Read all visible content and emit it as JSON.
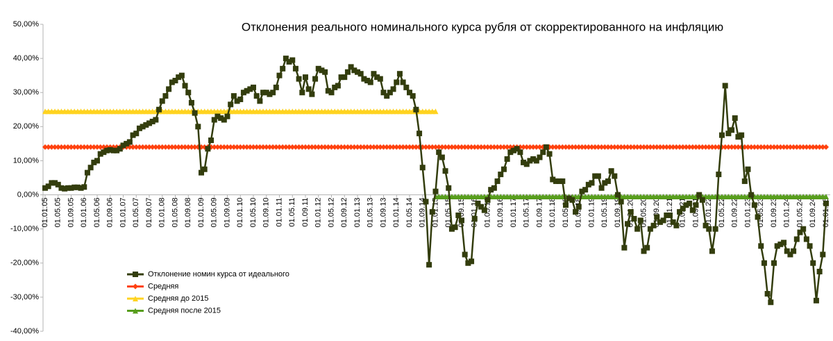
{
  "chart_data": {
    "type": "line",
    "title": "Отклонения реального номинального курса рубля от скорректированного на инфляцию",
    "categories": [
      "01.01.05",
      null,
      null,
      null,
      "01.05.05",
      null,
      null,
      null,
      "01.09.05",
      null,
      null,
      null,
      "01.01.06",
      null,
      null,
      null,
      "01.05.06",
      null,
      null,
      null,
      "01.09.06",
      null,
      null,
      null,
      "01.01.07",
      null,
      null,
      null,
      "01.05.07",
      null,
      null,
      null,
      "01.09.07",
      null,
      null,
      null,
      "01.01.08",
      null,
      null,
      null,
      "01.05.08",
      null,
      null,
      null,
      "01.09.08",
      null,
      null,
      null,
      "01.01.09",
      null,
      null,
      null,
      "01.05.09",
      null,
      null,
      null,
      "01.09.09",
      null,
      null,
      null,
      "01.01.10",
      null,
      null,
      null,
      "01.05.10",
      null,
      null,
      null,
      "01.09.10",
      null,
      null,
      null,
      "01.01.11",
      null,
      null,
      null,
      "01.05.11",
      null,
      null,
      null,
      "01.09.11",
      null,
      null,
      null,
      "01.01.12",
      null,
      null,
      null,
      "01.05.12",
      null,
      null,
      null,
      "01.09.12",
      null,
      null,
      null,
      "01.01.13",
      null,
      null,
      null,
      "01.05.13",
      null,
      null,
      null,
      "01.09.13",
      null,
      null,
      null,
      "01.01.14",
      null,
      null,
      null,
      "01.05.14",
      null,
      null,
      null,
      "01.09.14",
      null,
      null,
      null,
      "01.01.15",
      null,
      null,
      null,
      "01.05.15",
      null,
      null,
      null,
      "01.09.15",
      null,
      null,
      null,
      "01.01.16",
      null,
      null,
      null,
      "01.05.16",
      null,
      null,
      null,
      "01.09.16",
      null,
      null,
      null,
      "01.01.17",
      null,
      null,
      null,
      "01.05.17",
      null,
      null,
      null,
      "01.09.17",
      null,
      null,
      null,
      "01.01.18",
      null,
      null,
      null,
      "01.05.18",
      null,
      null,
      null,
      "01.09.18",
      null,
      null,
      null,
      "01.01.19",
      null,
      null,
      null,
      "01.05.19",
      null,
      null,
      null,
      "01.09.19",
      null,
      null,
      null,
      "01.01.20",
      null,
      null,
      null,
      "01.05.20",
      null,
      null,
      null,
      "01.09.20",
      null,
      null,
      null,
      "01.01.21",
      null,
      null,
      null,
      "01.05.21",
      null,
      null,
      null,
      "01.09.21",
      null,
      null,
      null,
      "01.01.22",
      null,
      null,
      null,
      "01.05.22",
      null,
      null,
      null,
      "01.09.22",
      null,
      null,
      null,
      "01.01.23",
      null,
      null,
      null,
      "01.05.23",
      null,
      null,
      null,
      "01.09.23",
      null,
      null,
      null,
      "01.01.24",
      null,
      null,
      null,
      "01.05.24",
      null,
      null,
      null,
      "01.09.24",
      null,
      null,
      null,
      "01.01.25"
    ],
    "series": [
      {
        "name": "Отклонение номин курса от идеального",
        "color": "#333d0d",
        "marker": "square",
        "values": [
          2,
          2.5,
          3.5,
          3.5,
          3,
          2,
          1.8,
          2,
          2,
          2.2,
          2.2,
          2,
          2.3,
          6.5,
          8,
          9.5,
          10,
          12,
          12.5,
          13,
          13.2,
          13,
          13,
          13.5,
          14.5,
          15,
          15.5,
          17.5,
          18,
          19.5,
          20,
          20.5,
          21,
          21.5,
          22,
          25,
          27.5,
          29,
          31,
          33,
          33.5,
          34.5,
          35,
          32,
          30,
          27,
          24,
          20,
          6.5,
          7.5,
          13.5,
          16,
          22,
          23,
          22.5,
          22,
          23,
          26.5,
          29,
          27.5,
          28,
          30,
          30.5,
          31,
          31.5,
          29,
          27.5,
          30,
          30,
          29.5,
          30,
          31.5,
          35,
          37,
          40,
          39,
          39.5,
          37,
          34,
          30,
          34.5,
          31,
          29.5,
          34,
          37,
          36.5,
          36,
          30.5,
          30,
          31.5,
          32,
          34.5,
          34.5,
          36,
          37.5,
          36.5,
          36,
          35.5,
          34,
          33.5,
          33,
          35.5,
          34.5,
          34,
          30,
          29,
          30,
          31,
          33,
          35.5,
          33,
          31.5,
          30,
          29,
          25,
          18,
          8,
          -2,
          -20.5,
          -5,
          1,
          12.5,
          11,
          7,
          2,
          -10,
          -9.5,
          -6,
          -7.5,
          -17.5,
          -20,
          -19.5,
          -7,
          -2.5,
          -3.5,
          -4.5,
          -1.5,
          1.5,
          2,
          4,
          6,
          7.5,
          10.5,
          12.5,
          13,
          13.5,
          12.5,
          9.5,
          9,
          10,
          10.5,
          10,
          11,
          12.5,
          14,
          12,
          4.5,
          4,
          4,
          4,
          -3,
          -1,
          -1.5,
          -5,
          -3.5,
          1,
          1.5,
          3,
          3.5,
          5.5,
          5.5,
          2,
          3.5,
          4,
          7,
          5.5,
          0,
          -2,
          -15.5,
          -8.5,
          -5,
          -7,
          -10,
          -7.5,
          -16.5,
          -15.5,
          -10,
          -9,
          -6.5,
          -8,
          -7.5,
          -6,
          -6,
          -8,
          -9,
          -5,
          -4,
          -3,
          -2.5,
          -4.5,
          -3,
          0,
          -1.5,
          -9,
          -10,
          -16.5,
          -10,
          6,
          17.5,
          32,
          18,
          19,
          22.5,
          17,
          17.5,
          4,
          7.5,
          0,
          -3,
          -6.5,
          -15,
          -20,
          -29,
          -31.5,
          -20,
          -15,
          -14.5,
          -14,
          -16.5,
          -17.5,
          -16.5,
          -13,
          -11,
          -10,
          -13,
          -15,
          -20,
          -31,
          -22.5,
          -17.5,
          -2.5
        ]
      },
      {
        "name": "Средняя",
        "color": "#ff420e",
        "marker": "diamond",
        "values": [
          14,
          14,
          14,
          14,
          14,
          14,
          14,
          14,
          14,
          14,
          14,
          14,
          14,
          14,
          14,
          14,
          14,
          14,
          14,
          14,
          14,
          14,
          14,
          14,
          14,
          14,
          14,
          14,
          14,
          14,
          14,
          14,
          14,
          14,
          14,
          14,
          14,
          14,
          14,
          14,
          14,
          14,
          14,
          14,
          14,
          14,
          14,
          14,
          14,
          14,
          14,
          14,
          14,
          14,
          14,
          14,
          14,
          14,
          14,
          14,
          14,
          14,
          14,
          14,
          14,
          14,
          14,
          14,
          14,
          14,
          14,
          14,
          14,
          14,
          14,
          14,
          14,
          14,
          14,
          14,
          14,
          14,
          14,
          14,
          14,
          14,
          14,
          14,
          14,
          14,
          14,
          14,
          14,
          14,
          14,
          14,
          14,
          14,
          14,
          14,
          14,
          14,
          14,
          14,
          14,
          14,
          14,
          14,
          14,
          14,
          14,
          14,
          14,
          14,
          14,
          14,
          14,
          14,
          14,
          14,
          14,
          14,
          14,
          14,
          14,
          14,
          14,
          14,
          14,
          14,
          14,
          14,
          14,
          14,
          14,
          14,
          14,
          14,
          14,
          14,
          14,
          14,
          14,
          14,
          14,
          14,
          14,
          14,
          14,
          14,
          14,
          14,
          14,
          14,
          14,
          14,
          14,
          14,
          14,
          14,
          14,
          14,
          14,
          14,
          14,
          14,
          14,
          14,
          14,
          14,
          14,
          14,
          14,
          14,
          14,
          14,
          14,
          14,
          14,
          14,
          14,
          14,
          14,
          14,
          14,
          14,
          14,
          14,
          14,
          14,
          14,
          14,
          14,
          14,
          14,
          14,
          14,
          14,
          14,
          14,
          14,
          14,
          14,
          14,
          14,
          14,
          14,
          14,
          14,
          14,
          14,
          14,
          14,
          14,
          14,
          14,
          14,
          14,
          14,
          14,
          14,
          14,
          14,
          14,
          14,
          14,
          14,
          14,
          14,
          14,
          14,
          14,
          14,
          14,
          14,
          14,
          14,
          14,
          14,
          14,
          14
        ]
      },
      {
        "name": "Средняя до 2015",
        "color": "#ffd320",
        "marker": "triangle",
        "values": [
          24.5,
          24.5,
          24.5,
          24.5,
          24.5,
          24.5,
          24.5,
          24.5,
          24.5,
          24.5,
          24.5,
          24.5,
          24.5,
          24.5,
          24.5,
          24.5,
          24.5,
          24.5,
          24.5,
          24.5,
          24.5,
          24.5,
          24.5,
          24.5,
          24.5,
          24.5,
          24.5,
          24.5,
          24.5,
          24.5,
          24.5,
          24.5,
          24.5,
          24.5,
          24.5,
          24.5,
          24.5,
          24.5,
          24.5,
          24.5,
          24.5,
          24.5,
          24.5,
          24.5,
          24.5,
          24.5,
          24.5,
          24.5,
          24.5,
          24.5,
          24.5,
          24.5,
          24.5,
          24.5,
          24.5,
          24.5,
          24.5,
          24.5,
          24.5,
          24.5,
          24.5,
          24.5,
          24.5,
          24.5,
          24.5,
          24.5,
          24.5,
          24.5,
          24.5,
          24.5,
          24.5,
          24.5,
          24.5,
          24.5,
          24.5,
          24.5,
          24.5,
          24.5,
          24.5,
          24.5,
          24.5,
          24.5,
          24.5,
          24.5,
          24.5,
          24.5,
          24.5,
          24.5,
          24.5,
          24.5,
          24.5,
          24.5,
          24.5,
          24.5,
          24.5,
          24.5,
          24.5,
          24.5,
          24.5,
          24.5,
          24.5,
          24.5,
          24.5,
          24.5,
          24.5,
          24.5,
          24.5,
          24.5,
          24.5,
          24.5,
          24.5,
          24.5,
          24.5,
          24.5,
          24.5,
          24.5,
          24.5,
          24.5,
          24.5,
          24.5,
          24.5,
          null,
          null,
          null,
          null,
          null,
          null,
          null,
          null,
          null,
          null,
          null,
          null,
          null,
          null,
          null,
          null,
          null,
          null,
          null,
          null,
          null,
          null,
          null,
          null,
          null,
          null,
          null,
          null,
          null,
          null,
          null,
          null,
          null,
          null,
          null,
          null,
          null,
          null,
          null,
          null,
          null,
          null,
          null,
          null,
          null,
          null,
          null,
          null,
          null,
          null,
          null,
          null,
          null,
          null,
          null,
          null,
          null,
          null,
          null,
          null,
          null,
          null,
          null,
          null,
          null,
          null,
          null,
          null,
          null,
          null,
          null,
          null,
          null,
          null,
          null,
          null,
          null,
          null,
          null,
          null,
          null,
          null,
          null,
          null,
          null,
          null,
          null,
          null,
          null,
          null,
          null,
          null,
          null,
          null,
          null,
          null,
          null,
          null,
          null,
          null,
          null,
          null,
          null,
          null,
          null,
          null,
          null,
          null,
          null,
          null,
          null,
          null,
          null,
          null,
          null,
          null,
          null,
          null,
          null,
          null
        ]
      },
      {
        "name": "Средняя  после 2015",
        "color": "#579d1c",
        "marker": "triangle",
        "values": [
          null,
          null,
          null,
          null,
          null,
          null,
          null,
          null,
          null,
          null,
          null,
          null,
          null,
          null,
          null,
          null,
          null,
          null,
          null,
          null,
          null,
          null,
          null,
          null,
          null,
          null,
          null,
          null,
          null,
          null,
          null,
          null,
          null,
          null,
          null,
          null,
          null,
          null,
          null,
          null,
          null,
          null,
          null,
          null,
          null,
          null,
          null,
          null,
          null,
          null,
          null,
          null,
          null,
          null,
          null,
          null,
          null,
          null,
          null,
          null,
          null,
          null,
          null,
          null,
          null,
          null,
          null,
          null,
          null,
          null,
          null,
          null,
          null,
          null,
          null,
          null,
          null,
          null,
          null,
          null,
          null,
          null,
          null,
          null,
          null,
          null,
          null,
          null,
          null,
          null,
          null,
          null,
          null,
          null,
          null,
          null,
          null,
          null,
          null,
          null,
          null,
          null,
          null,
          null,
          null,
          null,
          null,
          null,
          null,
          null,
          null,
          null,
          null,
          null,
          null,
          null,
          null,
          null,
          null,
          null,
          -0.5,
          -0.5,
          -0.5,
          -0.5,
          -0.5,
          -0.5,
          -0.5,
          -0.5,
          -0.5,
          -0.5,
          -0.5,
          -0.5,
          -0.5,
          -0.5,
          -0.5,
          -0.5,
          -0.5,
          -0.5,
          -0.5,
          -0.5,
          -0.5,
          -0.5,
          -0.5,
          -0.5,
          -0.5,
          -0.5,
          -0.5,
          -0.5,
          -0.5,
          -0.5,
          -0.5,
          -0.5,
          -0.5,
          -0.5,
          -0.5,
          -0.5,
          -0.5,
          -0.5,
          -0.5,
          -0.5,
          -0.5,
          -0.5,
          -0.5,
          -0.5,
          -0.5,
          -0.5,
          -0.5,
          -0.5,
          -0.5,
          -0.5,
          -0.5,
          -0.5,
          -0.5,
          -0.5,
          -0.5,
          -0.5,
          -0.5,
          -0.5,
          -0.5,
          -0.5,
          -0.5,
          -0.5,
          -0.5,
          -0.5,
          -0.5,
          -0.5,
          -0.5,
          -0.5,
          -0.5,
          -0.5,
          -0.5,
          -0.5,
          -0.5,
          -0.5,
          -0.5,
          -0.5,
          -0.5,
          -0.5,
          -0.5,
          -0.5,
          -0.5,
          -0.5,
          -0.5,
          -0.5,
          -0.5,
          -0.5,
          -0.5,
          -0.5,
          -0.5,
          -0.5,
          -0.5,
          -0.5,
          -0.5,
          -0.5,
          -0.5,
          -0.5,
          -0.5,
          -0.5,
          -0.5,
          -0.5,
          -0.5,
          -0.5,
          -0.5,
          -0.5,
          -0.5,
          -0.5,
          -0.5,
          -0.5,
          -0.5,
          -0.5,
          -0.5,
          -0.5,
          -0.5,
          -0.5,
          -0.5,
          -0.5,
          -0.5,
          -0.5,
          -0.5,
          -0.5,
          -0.5
        ]
      }
    ],
    "ylim": [
      -40,
      50
    ],
    "yticks": [
      {
        "value": -40,
        "label": "-40,00%"
      },
      {
        "value": -30,
        "label": "-30,00%"
      },
      {
        "value": -20,
        "label": "-20,00%"
      },
      {
        "value": -10,
        "label": "-10,00%"
      },
      {
        "value": 0,
        "label": "0,00%"
      },
      {
        "value": 10,
        "label": "10,00%"
      },
      {
        "value": 20,
        "label": "20,00%"
      },
      {
        "value": 30,
        "label": "30,00%"
      },
      {
        "value": 40,
        "label": "40,00%"
      },
      {
        "value": 50,
        "label": "50,00%"
      }
    ],
    "grid": false,
    "legend": "lower left"
  }
}
